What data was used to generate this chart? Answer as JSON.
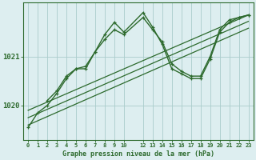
{
  "bg_color": "#ddeef0",
  "grid_color": "#aacccc",
  "line_color": "#2d6a2d",
  "title": "Graphe pression niveau de la mer (hPa)",
  "yticks": [
    1020,
    1021
  ],
  "ylim": [
    1019.3,
    1022.1
  ],
  "xlim": [
    -0.5,
    23.5
  ],
  "xticks": [
    0,
    1,
    2,
    3,
    4,
    5,
    6,
    7,
    8,
    9,
    10,
    12,
    13,
    14,
    15,
    16,
    17,
    18,
    19,
    20,
    21,
    22,
    23
  ],
  "series": [
    {
      "x": [
        0,
        1,
        2,
        3,
        4,
        5,
        6,
        7,
        8,
        9,
        10,
        12,
        13,
        14,
        15,
        16,
        17,
        18,
        19,
        20,
        21,
        22,
        23
      ],
      "y": [
        1019.55,
        1019.85,
        1020.0,
        1020.25,
        1020.55,
        1020.75,
        1020.75,
        1021.1,
        1021.35,
        1021.55,
        1021.45,
        1021.8,
        1021.55,
        1021.3,
        1020.85,
        1020.7,
        1020.6,
        1020.6,
        1021.0,
        1021.55,
        1021.75,
        1021.8,
        1021.85
      ],
      "marker": true,
      "lw": 1.0
    },
    {
      "x": [
        2,
        3,
        4,
        5,
        6,
        7,
        8,
        9,
        10,
        12,
        13,
        14,
        15,
        16,
        17,
        18,
        19,
        20,
        21,
        22,
        23
      ],
      "y": [
        1020.1,
        1020.3,
        1020.6,
        1020.75,
        1020.8,
        1021.1,
        1021.45,
        1021.7,
        1021.5,
        1021.9,
        1021.6,
        1021.25,
        1020.75,
        1020.65,
        1020.55,
        1020.55,
        1020.95,
        1021.5,
        1021.7,
        1021.8,
        1021.85
      ],
      "marker": true,
      "lw": 1.0
    },
    {
      "x": [
        0,
        23
      ],
      "y": [
        1019.9,
        1021.85
      ],
      "marker": false,
      "lw": 0.9
    },
    {
      "x": [
        0,
        23
      ],
      "y": [
        1019.75,
        1021.72
      ],
      "marker": false,
      "lw": 0.9
    },
    {
      "x": [
        0,
        23
      ],
      "y": [
        1019.6,
        1021.58
      ],
      "marker": false,
      "lw": 0.9
    }
  ]
}
